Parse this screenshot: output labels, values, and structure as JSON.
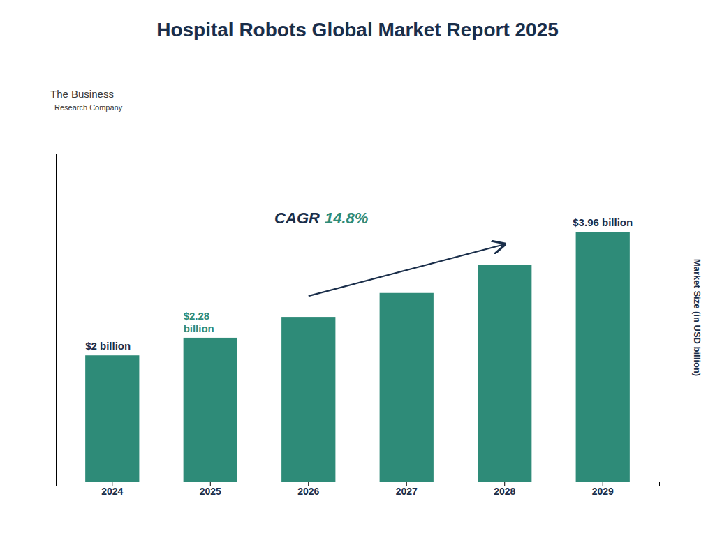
{
  "chart_data": {
    "type": "bar",
    "title": "Hospital Robots Global Market Report 2025",
    "y_label": "Market Size (in USD billion)",
    "categories": [
      "2024",
      "2025",
      "2026",
      "2027",
      "2028",
      "2029"
    ],
    "values": [
      2.0,
      2.28,
      2.61,
      2.99,
      3.43,
      3.96
    ],
    "color": "#2e8b78",
    "data_labels": true,
    "value_labels": [
      "$2 billion",
      "$2.28\nbillion",
      null,
      null,
      null,
      "$3.96 billion"
    ],
    "ylim": [
      0,
      5.2
    ],
    "yticks": [],
    "tick_labels": "x",
    "grid": false,
    "annotations": [
      "CAGR",
      "14.8%",
      "The Business",
      "Research Company"
    ]
  }
}
